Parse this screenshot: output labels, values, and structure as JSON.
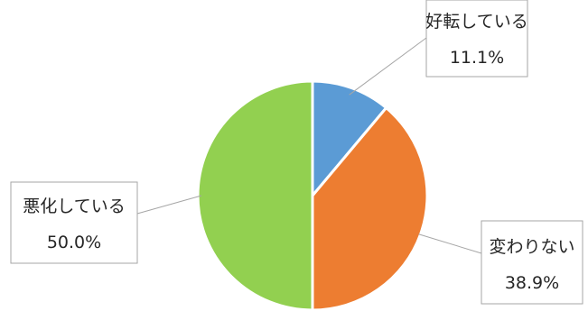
{
  "chart_data": {
    "type": "pie",
    "title": "",
    "slices": [
      {
        "label": "好転している",
        "value": 11.1,
        "value_label": "11.1%",
        "color": "#5b9bd5"
      },
      {
        "label": "変わりない",
        "value": 38.9,
        "value_label": "38.9%",
        "color": "#ed7d31"
      },
      {
        "label": "悪化している",
        "value": 50.0,
        "value_label": "50.0%",
        "color": "#92d050"
      }
    ],
    "start_angle": "12 o'clock",
    "direction": "clockwise",
    "legend": "none",
    "data_labels": "category name and percentage in callout boxes with leader lines"
  }
}
